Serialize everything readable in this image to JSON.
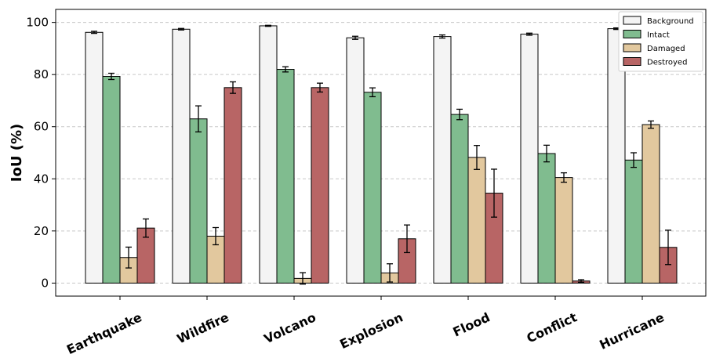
{
  "chart_data": {
    "type": "bar",
    "title": "",
    "xlabel": "",
    "ylabel": "IoU (%)",
    "ylim": [
      -5,
      105
    ],
    "yticks": [
      0,
      20,
      40,
      60,
      80,
      100
    ],
    "grid": "horizontal-dashed",
    "legend_position": "top-right",
    "categories": [
      "Earthquake",
      "Wildfire",
      "Volcano",
      "Explosion",
      "Flood",
      "Conflict",
      "Hurricane"
    ],
    "series": [
      {
        "name": "Background",
        "color": "#f4f4f4",
        "values": [
          96.2,
          97.4,
          98.7,
          94.1,
          94.6,
          95.5,
          97.6
        ],
        "errors": [
          0.4,
          0.3,
          0.2,
          0.6,
          0.6,
          0.4,
          0.3
        ]
      },
      {
        "name": "Intact",
        "color": "#80bc8f",
        "values": [
          79.3,
          63.0,
          82.0,
          73.2,
          64.7,
          49.7,
          47.2
        ],
        "errors": [
          1.2,
          5.0,
          1.0,
          1.7,
          2.0,
          3.2,
          2.8
        ]
      },
      {
        "name": "Damaged",
        "color": "#e2c89e",
        "values": [
          9.8,
          18.0,
          1.8,
          3.9,
          48.2,
          40.5,
          60.8
        ],
        "errors": [
          4.0,
          3.3,
          2.2,
          3.5,
          4.6,
          1.8,
          1.4
        ]
      },
      {
        "name": "Destroyed",
        "color": "#b86565",
        "values": [
          21.1,
          75.0,
          75.0,
          17.0,
          34.5,
          0.8,
          13.7
        ],
        "errors": [
          3.5,
          2.2,
          1.7,
          5.3,
          9.2,
          0.5,
          6.6
        ]
      }
    ]
  }
}
